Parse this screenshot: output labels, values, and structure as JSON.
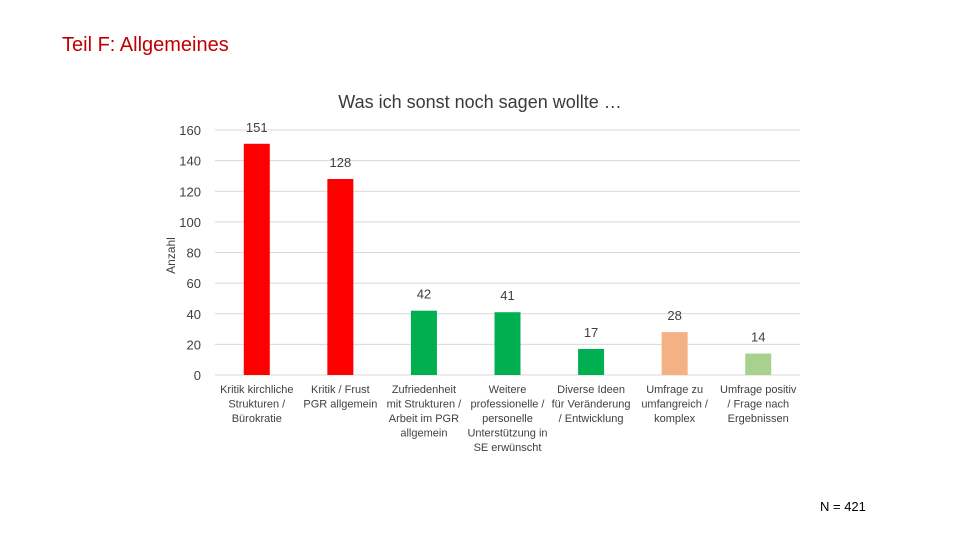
{
  "slide": {
    "title": "Teil F: Allgemeines",
    "footnote": "N = 421"
  },
  "chart_data": {
    "type": "bar",
    "title": "Was ich sonst noch sagen wollte …",
    "xlabel": "",
    "ylabel": "Anzahl",
    "ylim": [
      0,
      160
    ],
    "yticks": [
      0,
      20,
      40,
      60,
      80,
      100,
      120,
      140,
      160
    ],
    "grid": true,
    "categories": [
      [
        "Kritik kirchliche",
        "Strukturen /",
        "Bürokratie"
      ],
      [
        "Kritik / Frust",
        "PGR allgemein"
      ],
      [
        "Zufriedenheit",
        "mit Strukturen /",
        "Arbeit im PGR",
        "allgemein"
      ],
      [
        "Weitere",
        "professionelle /",
        "personelle",
        "Unterstützung in",
        "SE erwünscht"
      ],
      [
        "Diverse Ideen",
        "für Veränderung",
        "/ Entwicklung"
      ],
      [
        "Umfrage zu",
        "umfangreich /",
        "komplex"
      ],
      [
        "Umfrage positiv",
        "/ Frage nach",
        "Ergebnissen"
      ]
    ],
    "values": [
      151,
      128,
      42,
      41,
      17,
      28,
      14
    ],
    "colors": [
      "#ff0000",
      "#ff0000",
      "#00b050",
      "#00b050",
      "#00b050",
      "#f4b183",
      "#a9d18e"
    ]
  }
}
